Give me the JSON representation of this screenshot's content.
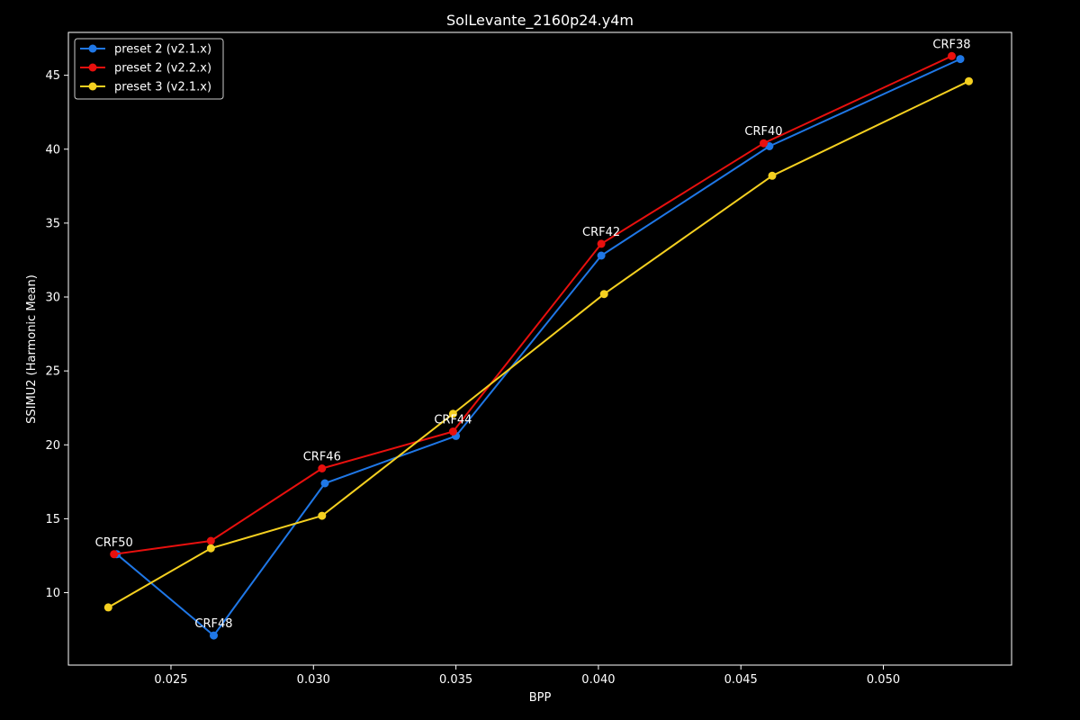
{
  "chart_data": {
    "type": "line",
    "title": "SolLevante_2160p24.y4m",
    "xlabel": "BPP",
    "ylabel": "SSIMU2 (Harmonic Mean)",
    "xlim": [
      0.0214,
      0.0545
    ],
    "ylim": [
      5.1,
      47.9
    ],
    "xticks": [
      0.025,
      0.03,
      0.035,
      0.04,
      0.045,
      0.05
    ],
    "xtick_labels": [
      "0.025",
      "0.030",
      "0.035",
      "0.040",
      "0.045",
      "0.050"
    ],
    "yticks": [
      10,
      15,
      20,
      25,
      30,
      35,
      40,
      45
    ],
    "ytick_labels": [
      "10",
      "15",
      "20",
      "25",
      "30",
      "35",
      "40",
      "45"
    ],
    "grid": false,
    "legend_position": "top-left",
    "series": [
      {
        "name": "preset 2 (v2.1.x)",
        "color": "#1f77e6",
        "x": [
          0.0231,
          0.0265,
          0.0304,
          0.035,
          0.0401,
          0.046,
          0.0527
        ],
        "y": [
          12.6,
          7.1,
          17.4,
          20.6,
          32.8,
          40.2,
          46.1
        ]
      },
      {
        "name": "preset 2 (v2.2.x)",
        "color": "#e8100e",
        "x": [
          0.023,
          0.0264,
          0.0303,
          0.0349,
          0.0401,
          0.0458,
          0.0524
        ],
        "y": [
          12.6,
          13.5,
          18.4,
          20.9,
          33.6,
          40.4,
          46.3
        ]
      },
      {
        "name": "preset 3 (v2.1.x)",
        "color": "#f5d020",
        "x": [
          0.0228,
          0.0264,
          0.0303,
          0.0349,
          0.0402,
          0.0461,
          0.053
        ],
        "y": [
          9.0,
          13.0,
          15.2,
          22.1,
          30.2,
          38.2,
          44.6
        ]
      }
    ],
    "annotations": [
      {
        "text": "CRF50",
        "x": 0.023,
        "y": 12.6
      },
      {
        "text": "CRF48",
        "x": 0.0265,
        "y": 7.1
      },
      {
        "text": "CRF46",
        "x": 0.0303,
        "y": 18.4
      },
      {
        "text": "CRF44",
        "x": 0.0349,
        "y": 20.9
      },
      {
        "text": "CRF42",
        "x": 0.0401,
        "y": 33.6
      },
      {
        "text": "CRF40",
        "x": 0.0458,
        "y": 40.4
      },
      {
        "text": "CRF38",
        "x": 0.0524,
        "y": 46.3
      }
    ]
  }
}
